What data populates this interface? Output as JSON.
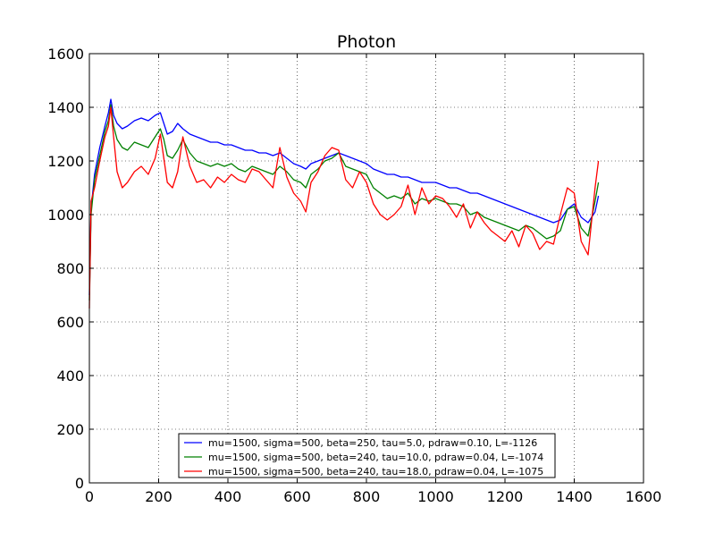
{
  "chart_data": {
    "type": "line",
    "title": "Photon",
    "xlabel": "",
    "ylabel": "",
    "xlim": [
      0,
      1600
    ],
    "ylim": [
      0,
      1600
    ],
    "xticks": [
      0,
      200,
      400,
      600,
      800,
      1000,
      1200,
      1400,
      1600
    ],
    "yticks": [
      0,
      200,
      400,
      600,
      800,
      1000,
      1200,
      1400,
      1600
    ],
    "grid": true,
    "grid_style": "dotted",
    "legend_position": "lower center",
    "series": [
      {
        "name": "mu=1500, sigma=500, beta=250, tau=5.0, pdraw=0.10, L=-1126",
        "color": "#0000ff",
        "x": [
          0,
          5,
          15,
          30,
          45,
          55,
          62,
          70,
          80,
          95,
          110,
          130,
          150,
          170,
          190,
          205,
          215,
          225,
          240,
          255,
          270,
          290,
          310,
          330,
          350,
          370,
          390,
          410,
          430,
          450,
          470,
          490,
          510,
          530,
          550,
          570,
          590,
          610,
          625,
          640,
          660,
          680,
          700,
          720,
          740,
          760,
          780,
          800,
          820,
          840,
          860,
          880,
          900,
          920,
          940,
          960,
          980,
          1000,
          1020,
          1040,
          1060,
          1080,
          1100,
          1120,
          1140,
          1160,
          1180,
          1200,
          1220,
          1240,
          1260,
          1280,
          1300,
          1320,
          1340,
          1360,
          1380,
          1400,
          1420,
          1440,
          1460,
          1470
        ],
        "values": [
          700,
          1020,
          1150,
          1250,
          1330,
          1380,
          1430,
          1370,
          1340,
          1320,
          1330,
          1350,
          1360,
          1350,
          1370,
          1380,
          1340,
          1300,
          1310,
          1340,
          1320,
          1300,
          1290,
          1280,
          1270,
          1270,
          1260,
          1260,
          1250,
          1240,
          1240,
          1230,
          1230,
          1220,
          1230,
          1210,
          1190,
          1180,
          1170,
          1190,
          1200,
          1210,
          1220,
          1230,
          1220,
          1210,
          1200,
          1190,
          1170,
          1160,
          1150,
          1150,
          1140,
          1140,
          1130,
          1120,
          1120,
          1120,
          1110,
          1100,
          1100,
          1090,
          1080,
          1080,
          1070,
          1060,
          1050,
          1040,
          1030,
          1020,
          1010,
          1000,
          990,
          980,
          970,
          980,
          1020,
          1040,
          990,
          970,
          1010,
          1070
        ]
      },
      {
        "name": "mu=1500, sigma=500, beta=240, tau=10.0, pdraw=0.04, L=-1074",
        "color": "#008000",
        "x": [
          0,
          5,
          15,
          30,
          45,
          55,
          62,
          70,
          80,
          95,
          110,
          130,
          150,
          170,
          190,
          205,
          215,
          225,
          240,
          255,
          270,
          290,
          310,
          330,
          350,
          370,
          390,
          410,
          430,
          450,
          470,
          490,
          510,
          530,
          550,
          570,
          590,
          610,
          625,
          640,
          660,
          680,
          700,
          720,
          740,
          760,
          780,
          800,
          820,
          840,
          860,
          880,
          900,
          920,
          940,
          960,
          980,
          1000,
          1020,
          1040,
          1060,
          1080,
          1100,
          1120,
          1140,
          1160,
          1180,
          1200,
          1220,
          1240,
          1260,
          1280,
          1300,
          1320,
          1340,
          1360,
          1380,
          1400,
          1420,
          1440,
          1460,
          1470
        ],
        "values": [
          680,
          1000,
          1130,
          1220,
          1310,
          1350,
          1410,
          1330,
          1280,
          1250,
          1240,
          1270,
          1260,
          1250,
          1290,
          1320,
          1280,
          1220,
          1210,
          1240,
          1280,
          1230,
          1200,
          1190,
          1180,
          1190,
          1180,
          1190,
          1170,
          1160,
          1180,
          1170,
          1160,
          1150,
          1180,
          1160,
          1130,
          1120,
          1100,
          1150,
          1170,
          1200,
          1210,
          1230,
          1180,
          1170,
          1160,
          1150,
          1100,
          1080,
          1060,
          1070,
          1060,
          1080,
          1040,
          1060,
          1050,
          1060,
          1050,
          1040,
          1040,
          1030,
          1000,
          1010,
          990,
          980,
          970,
          960,
          950,
          940,
          960,
          950,
          930,
          910,
          920,
          940,
          1020,
          1030,
          950,
          920,
          1050,
          1120
        ]
      },
      {
        "name": "mu=1500, sigma=500, beta=240, tau=18.0, pdraw=0.04, L=-1075",
        "color": "#ff0000",
        "x": [
          0,
          5,
          15,
          30,
          45,
          55,
          62,
          70,
          80,
          95,
          110,
          130,
          150,
          170,
          190,
          205,
          215,
          225,
          240,
          255,
          270,
          290,
          310,
          330,
          350,
          370,
          390,
          410,
          430,
          450,
          470,
          490,
          510,
          530,
          550,
          570,
          590,
          610,
          625,
          640,
          660,
          680,
          700,
          720,
          740,
          760,
          780,
          800,
          820,
          840,
          860,
          880,
          900,
          920,
          940,
          960,
          980,
          1000,
          1020,
          1040,
          1060,
          1080,
          1100,
          1120,
          1140,
          1160,
          1180,
          1200,
          1220,
          1240,
          1260,
          1280,
          1300,
          1320,
          1340,
          1360,
          1380,
          1400,
          1420,
          1440,
          1460,
          1470
        ],
        "values": [
          650,
          1050,
          1100,
          1200,
          1290,
          1330,
          1400,
          1290,
          1160,
          1100,
          1120,
          1160,
          1180,
          1150,
          1210,
          1300,
          1210,
          1120,
          1100,
          1160,
          1290,
          1180,
          1120,
          1130,
          1100,
          1140,
          1120,
          1150,
          1130,
          1120,
          1170,
          1160,
          1130,
          1100,
          1250,
          1140,
          1080,
          1050,
          1010,
          1120,
          1160,
          1220,
          1250,
          1240,
          1130,
          1100,
          1160,
          1120,
          1040,
          1000,
          980,
          1000,
          1030,
          1110,
          1000,
          1100,
          1040,
          1070,
          1060,
          1030,
          990,
          1040,
          950,
          1010,
          970,
          940,
          920,
          900,
          940,
          880,
          960,
          930,
          870,
          900,
          890,
          1000,
          1100,
          1080,
          900,
          850,
          1100,
          1200
        ]
      }
    ]
  }
}
